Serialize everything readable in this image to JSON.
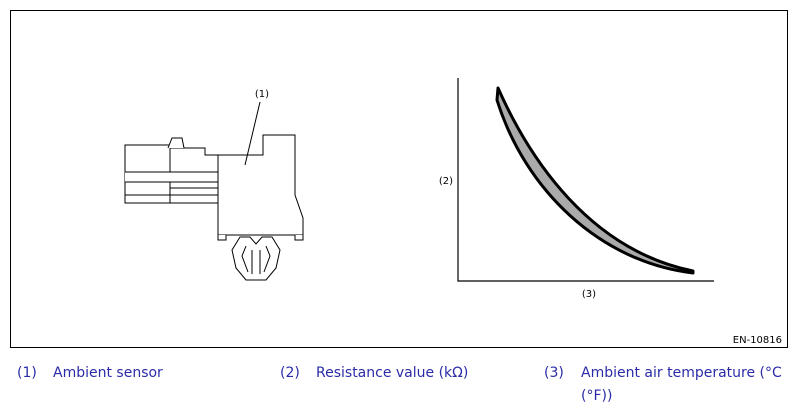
{
  "figure": {
    "labels": {
      "sensor": "(1)",
      "y_axis": "(2)",
      "x_axis": "(3)"
    },
    "code": "EN-10816"
  },
  "legend": [
    {
      "number": "(1)",
      "text": "Ambient sensor"
    },
    {
      "number": "(2)",
      "text": "Resistance value (kΩ)"
    },
    {
      "number": "(3)",
      "text": "Ambient air temperature (°C (°F))"
    }
  ]
}
